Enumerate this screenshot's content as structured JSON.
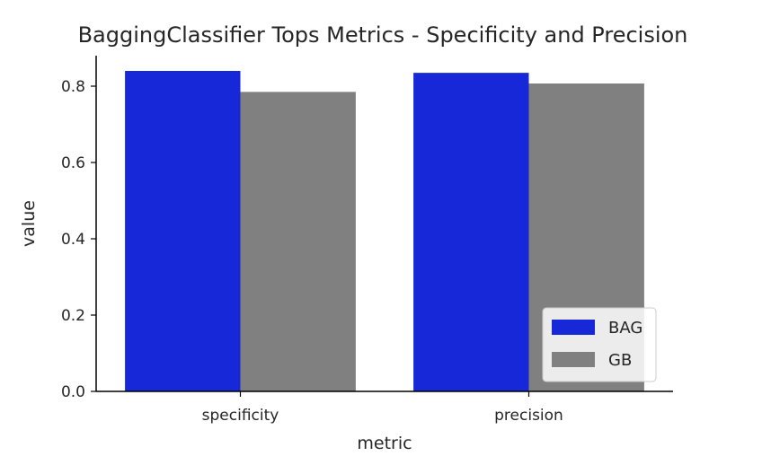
{
  "chart_data": {
    "type": "bar",
    "title": "BaggingClassifier Tops Metrics - Specificity and Precision",
    "xlabel": "metric",
    "ylabel": "value",
    "categories": [
      "specificity",
      "precision"
    ],
    "series": [
      {
        "name": "BAG",
        "values": [
          0.84,
          0.835
        ],
        "color": "#1728d8"
      },
      {
        "name": "GB",
        "values": [
          0.785,
          0.807
        ],
        "color": "#808080"
      }
    ],
    "ylim": [
      0,
      0.88
    ],
    "yticks": [
      0.0,
      0.2,
      0.4,
      0.6,
      0.8
    ],
    "ytick_labels": [
      "0.0",
      "0.2",
      "0.4",
      "0.6",
      "0.8"
    ],
    "grid": false,
    "legend_position": "lower-right"
  }
}
